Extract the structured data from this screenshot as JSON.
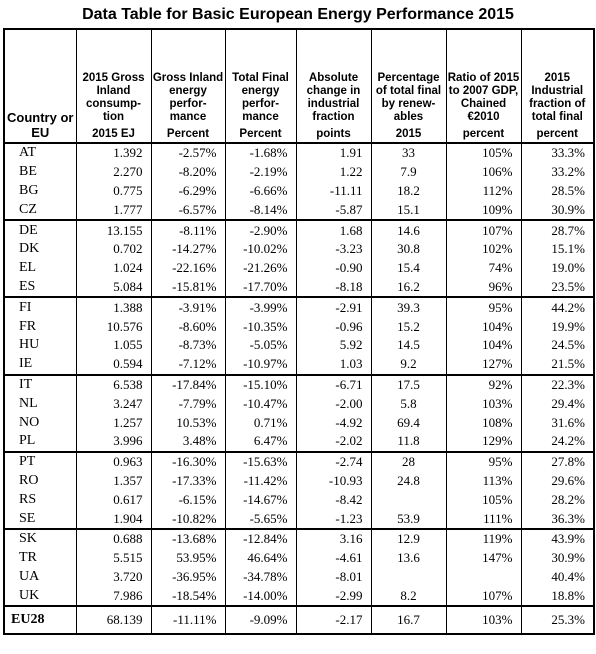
{
  "title": "Data Table for Basic European Energy Performance 2015",
  "headers": [
    "Country or EU",
    "2015 Gross Inland consump-tion",
    "Gross Inland energy perfor-mance",
    "Total Final energy perfor-mance",
    "Absolute change in industrial fraction",
    "Percentage of total final by renew-ables",
    "Ratio of 2015 to 2007 GDP, Chained €2010",
    "2015 Industrial fraction of total final"
  ],
  "units": [
    "2015 EJ",
    "Percent",
    "Percent",
    "points",
    "2015",
    "percent",
    "percent"
  ],
  "rows": [
    [
      "AT",
      "1.392",
      "-2.57%",
      "-1.68%",
      "1.91",
      "33",
      "105%",
      "33.3%"
    ],
    [
      "BE",
      "2.270",
      "-8.20%",
      "-2.19%",
      "1.22",
      "7.9",
      "106%",
      "33.2%"
    ],
    [
      "BG",
      "0.775",
      "-6.29%",
      "-6.66%",
      "-11.11",
      "18.2",
      "112%",
      "28.5%"
    ],
    [
      "CZ",
      "1.777",
      "-6.57%",
      "-8.14%",
      "-5.87",
      "15.1",
      "109%",
      "30.9%"
    ],
    [
      "DE",
      "13.155",
      "-8.11%",
      "-2.90%",
      "1.68",
      "14.6",
      "107%",
      "28.7%"
    ],
    [
      "DK",
      "0.702",
      "-14.27%",
      "-10.02%",
      "-3.23",
      "30.8",
      "102%",
      "15.1%"
    ],
    [
      "EL",
      "1.024",
      "-22.16%",
      "-21.26%",
      "-0.90",
      "15.4",
      "74%",
      "19.0%"
    ],
    [
      "ES",
      "5.084",
      "-15.81%",
      "-17.70%",
      "-8.18",
      "16.2",
      "96%",
      "23.5%"
    ],
    [
      "FI",
      "1.388",
      "-3.91%",
      "-3.99%",
      "-2.91",
      "39.3",
      "95%",
      "44.2%"
    ],
    [
      "FR",
      "10.576",
      "-8.60%",
      "-10.35%",
      "-0.96",
      "15.2",
      "104%",
      "19.9%"
    ],
    [
      "HU",
      "1.055",
      "-8.73%",
      "-5.05%",
      "5.92",
      "14.5",
      "104%",
      "24.5%"
    ],
    [
      "IE",
      "0.594",
      "-7.12%",
      "-10.97%",
      "1.03",
      "9.2",
      "127%",
      "21.5%"
    ],
    [
      "IT",
      "6.538",
      "-17.84%",
      "-15.10%",
      "-6.71",
      "17.5",
      "92%",
      "22.3%"
    ],
    [
      "NL",
      "3.247",
      "-7.79%",
      "-10.47%",
      "-2.00",
      "5.8",
      "103%",
      "29.4%"
    ],
    [
      "NO",
      "1.257",
      "10.53%",
      "0.71%",
      "-4.92",
      "69.4",
      "108%",
      "31.6%"
    ],
    [
      "PL",
      "3.996",
      "3.48%",
      "6.47%",
      "-2.02",
      "11.8",
      "129%",
      "24.2%"
    ],
    [
      "PT",
      "0.963",
      "-16.30%",
      "-15.63%",
      "-2.74",
      "28",
      "95%",
      "27.8%"
    ],
    [
      "RO",
      "1.357",
      "-17.33%",
      "-11.42%",
      "-10.93",
      "24.8",
      "113%",
      "29.6%"
    ],
    [
      "RS",
      "0.617",
      "-6.15%",
      "-14.67%",
      "-8.42",
      "",
      "105%",
      "28.2%"
    ],
    [
      "SE",
      "1.904",
      "-10.82%",
      "-5.65%",
      "-1.23",
      "53.9",
      "111%",
      "36.3%"
    ],
    [
      "SK",
      "0.688",
      "-13.68%",
      "-12.84%",
      "3.16",
      "12.9",
      "119%",
      "43.9%"
    ],
    [
      "TR",
      "5.515",
      "53.95%",
      "46.64%",
      "-4.61",
      "13.6",
      "147%",
      "30.9%"
    ],
    [
      "UA",
      "3.720",
      "-36.95%",
      "-34.78%",
      "-8.01",
      "",
      "",
      "40.4%"
    ],
    [
      "UK",
      "7.986",
      "-18.54%",
      "-14.00%",
      "-2.99",
      "8.2",
      "107%",
      "18.8%"
    ]
  ],
  "total": [
    "EU28",
    "68.139",
    "-11.11%",
    "-9.09%",
    "-2.17",
    "16.7",
    "103%",
    "25.3%"
  ]
}
